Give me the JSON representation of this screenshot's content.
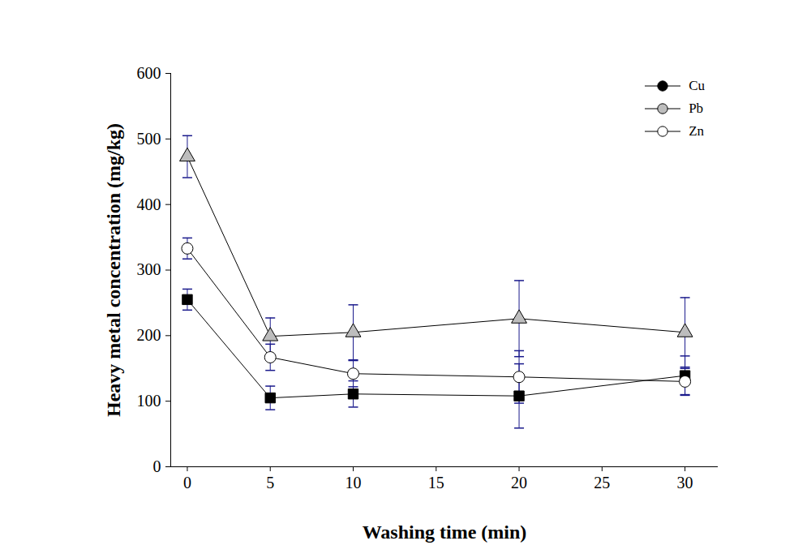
{
  "chart_data": {
    "type": "line",
    "x_label": "Washing time (min)",
    "y_label": "Heavy metal concentration (mg/kg)",
    "x": [
      0,
      5,
      10,
      20,
      30
    ],
    "series": [
      {
        "name": "Cu",
        "color": "#000000",
        "marker": "square",
        "values": [
          255,
          105,
          111,
          108,
          139
        ],
        "errors": [
          16,
          18,
          20,
          49,
          30
        ]
      },
      {
        "name": "Pb",
        "color": "#bdbdbd",
        "marker": "triangle",
        "values": [
          473,
          199,
          205,
          226,
          205
        ],
        "errors": [
          32,
          28,
          42,
          58,
          53
        ]
      },
      {
        "name": "Zn",
        "color": "#ffffff",
        "marker": "circle",
        "values": [
          333,
          167,
          142,
          137,
          130
        ],
        "errors": [
          16,
          20,
          20,
          40,
          20
        ]
      }
    ],
    "xlim": [
      -1,
      32
    ],
    "xticks": [
      0,
      5,
      10,
      15,
      20,
      25,
      30
    ],
    "ylim": [
      0,
      600
    ],
    "yticks": [
      0,
      100,
      200,
      300,
      400,
      500,
      600
    ],
    "legend": "top-right",
    "grid": false
  }
}
